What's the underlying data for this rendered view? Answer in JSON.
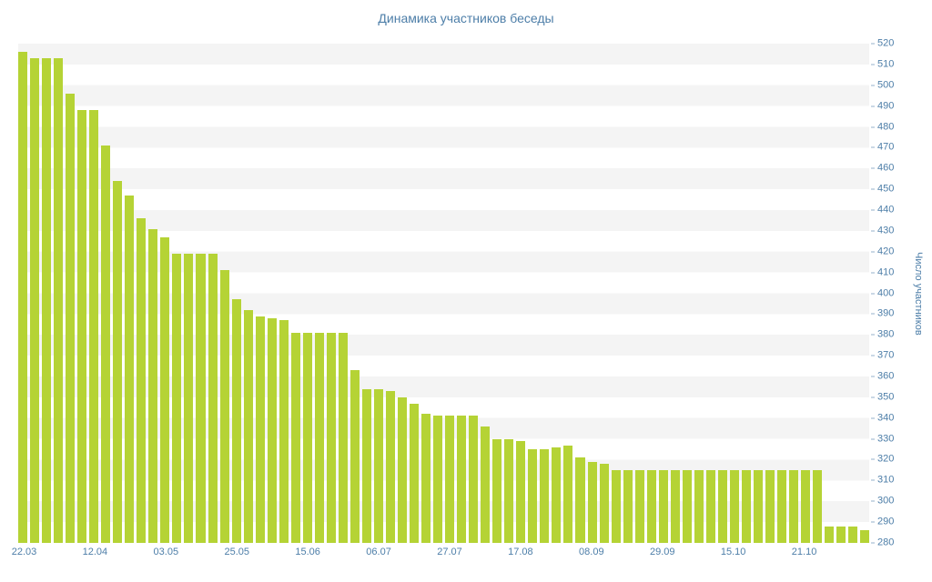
{
  "page": {
    "background": "#ffffff"
  },
  "chart_data": {
    "type": "bar",
    "title": "Динамика участников беседы",
    "xlabel": "",
    "ylabel": "Число участников",
    "ylim": [
      280,
      520
    ],
    "ytick_step": 10,
    "grid": "horizontal-stripes",
    "legend": "none",
    "bar_color": "#b5d335",
    "text_color": "#4d7ea8",
    "stripe_color": "#f4f4f4",
    "values": [
      516,
      513,
      513,
      513,
      496,
      488,
      488,
      471,
      454,
      447,
      436,
      431,
      427,
      419,
      419,
      419,
      419,
      411,
      397,
      392,
      389,
      388,
      387,
      381,
      381,
      381,
      381,
      381,
      363,
      354,
      354,
      353,
      350,
      347,
      342,
      341,
      341,
      341,
      341,
      336,
      330,
      330,
      329,
      325,
      325,
      326,
      327,
      321,
      319,
      318,
      315,
      315,
      315,
      315,
      315,
      315,
      315,
      315,
      315,
      315,
      315,
      315,
      315,
      315,
      315,
      315,
      315,
      315,
      288,
      288,
      288,
      286
    ],
    "xticks": [
      {
        "i": 0,
        "label": "22.03"
      },
      {
        "i": 6,
        "label": "12.04"
      },
      {
        "i": 12,
        "label": "03.05"
      },
      {
        "i": 18,
        "label": "25.05"
      },
      {
        "i": 24,
        "label": "15.06"
      },
      {
        "i": 30,
        "label": "06.07"
      },
      {
        "i": 36,
        "label": "27.07"
      },
      {
        "i": 42,
        "label": "17.08"
      },
      {
        "i": 48,
        "label": "08.09"
      },
      {
        "i": 54,
        "label": "29.09"
      },
      {
        "i": 60,
        "label": "15.10"
      },
      {
        "i": 66,
        "label": "21.10"
      }
    ]
  }
}
